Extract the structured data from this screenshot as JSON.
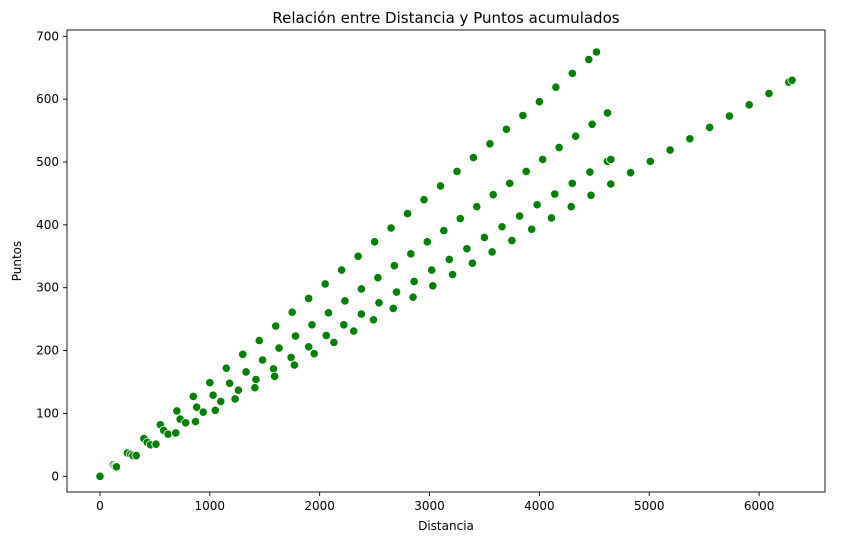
{
  "chart_data": {
    "type": "scatter",
    "title": "Relación entre Distancia y Puntos acumulados",
    "xlabel": "Distancia",
    "ylabel": "Puntos",
    "xlim": [
      -300,
      6600
    ],
    "ylim": [
      -25,
      710
    ],
    "xticks": [
      0,
      1000,
      2000,
      3000,
      4000,
      5000,
      6000
    ],
    "yticks": [
      0,
      100,
      200,
      300,
      400,
      500,
      600,
      700
    ],
    "grid": false,
    "marker_color": "#008000",
    "marker_edge_color": "#ffffff",
    "series": [
      {
        "points": [
          [
            0,
            0
          ],
          [
            120,
            18
          ],
          [
            250,
            37
          ],
          [
            400,
            60
          ],
          [
            550,
            82
          ],
          [
            700,
            104
          ],
          [
            850,
            127
          ],
          [
            1000,
            149
          ],
          [
            1150,
            172
          ],
          [
            1300,
            194
          ],
          [
            1450,
            216
          ],
          [
            1600,
            239
          ],
          [
            1750,
            261
          ],
          [
            1900,
            283
          ],
          [
            2050,
            306
          ],
          [
            2200,
            328
          ],
          [
            2350,
            350
          ],
          [
            2500,
            373
          ],
          [
            2650,
            395
          ],
          [
            2800,
            418
          ],
          [
            2950,
            440
          ],
          [
            3100,
            462
          ],
          [
            3250,
            485
          ],
          [
            3400,
            507
          ],
          [
            3550,
            529
          ],
          [
            3700,
            552
          ],
          [
            3850,
            574
          ],
          [
            4000,
            596
          ],
          [
            4150,
            619
          ],
          [
            4300,
            641
          ],
          [
            4450,
            663
          ],
          [
            4520,
            675
          ]
        ]
      },
      {
        "points": [
          [
            130,
            16
          ],
          [
            280,
            35
          ],
          [
            430,
            54
          ],
          [
            580,
            73
          ],
          [
            730,
            91
          ],
          [
            880,
            110
          ],
          [
            1030,
            129
          ],
          [
            1180,
            148
          ],
          [
            1330,
            166
          ],
          [
            1480,
            185
          ],
          [
            1630,
            204
          ],
          [
            1780,
            223
          ],
          [
            1930,
            241
          ],
          [
            2080,
            260
          ],
          [
            2230,
            279
          ],
          [
            2380,
            298
          ],
          [
            2530,
            316
          ],
          [
            2680,
            335
          ],
          [
            2830,
            354
          ],
          [
            2980,
            373
          ],
          [
            3130,
            391
          ],
          [
            3280,
            410
          ],
          [
            3430,
            429
          ],
          [
            3580,
            448
          ],
          [
            3730,
            466
          ],
          [
            3880,
            485
          ],
          [
            4030,
            504
          ],
          [
            4180,
            523
          ],
          [
            4330,
            541
          ],
          [
            4480,
            560
          ],
          [
            4620,
            578
          ]
        ]
      },
      {
        "points": [
          [
            140,
            15
          ],
          [
            300,
            33
          ],
          [
            460,
            50
          ],
          [
            620,
            67
          ],
          [
            780,
            85
          ],
          [
            940,
            102
          ],
          [
            1100,
            119
          ],
          [
            1260,
            137
          ],
          [
            1420,
            154
          ],
          [
            1580,
            171
          ],
          [
            1740,
            189
          ],
          [
            1900,
            206
          ],
          [
            2060,
            224
          ],
          [
            2220,
            241
          ],
          [
            2380,
            258
          ],
          [
            2540,
            276
          ],
          [
            2700,
            293
          ],
          [
            2860,
            310
          ],
          [
            3020,
            328
          ],
          [
            3180,
            345
          ],
          [
            3340,
            362
          ],
          [
            3500,
            380
          ],
          [
            3660,
            397
          ],
          [
            3820,
            414
          ],
          [
            3980,
            432
          ],
          [
            4140,
            449
          ],
          [
            4300,
            466
          ],
          [
            4460,
            484
          ],
          [
            4620,
            501
          ],
          [
            4650,
            504
          ]
        ]
      },
      {
        "points": [
          [
            150,
            15
          ],
          [
            330,
            33
          ],
          [
            510,
            51
          ],
          [
            690,
            69
          ],
          [
            870,
            87
          ],
          [
            1050,
            105
          ],
          [
            1230,
            123
          ],
          [
            1410,
            141
          ],
          [
            1590,
            159
          ],
          [
            1770,
            177
          ],
          [
            1950,
            195
          ],
          [
            2130,
            213
          ],
          [
            2310,
            231
          ],
          [
            2490,
            249
          ],
          [
            2670,
            267
          ],
          [
            2850,
            285
          ],
          [
            3030,
            303
          ],
          [
            3210,
            321
          ],
          [
            3390,
            339
          ],
          [
            3570,
            357
          ],
          [
            3750,
            375
          ],
          [
            3930,
            393
          ],
          [
            4110,
            411
          ],
          [
            4290,
            429
          ],
          [
            4470,
            447
          ],
          [
            4650,
            465
          ],
          [
            4830,
            483
          ],
          [
            5010,
            501
          ],
          [
            5190,
            519
          ],
          [
            5370,
            537
          ],
          [
            5550,
            555
          ],
          [
            5730,
            573
          ],
          [
            5910,
            591
          ],
          [
            6090,
            609
          ],
          [
            6270,
            627
          ],
          [
            6300,
            630
          ]
        ]
      }
    ]
  }
}
